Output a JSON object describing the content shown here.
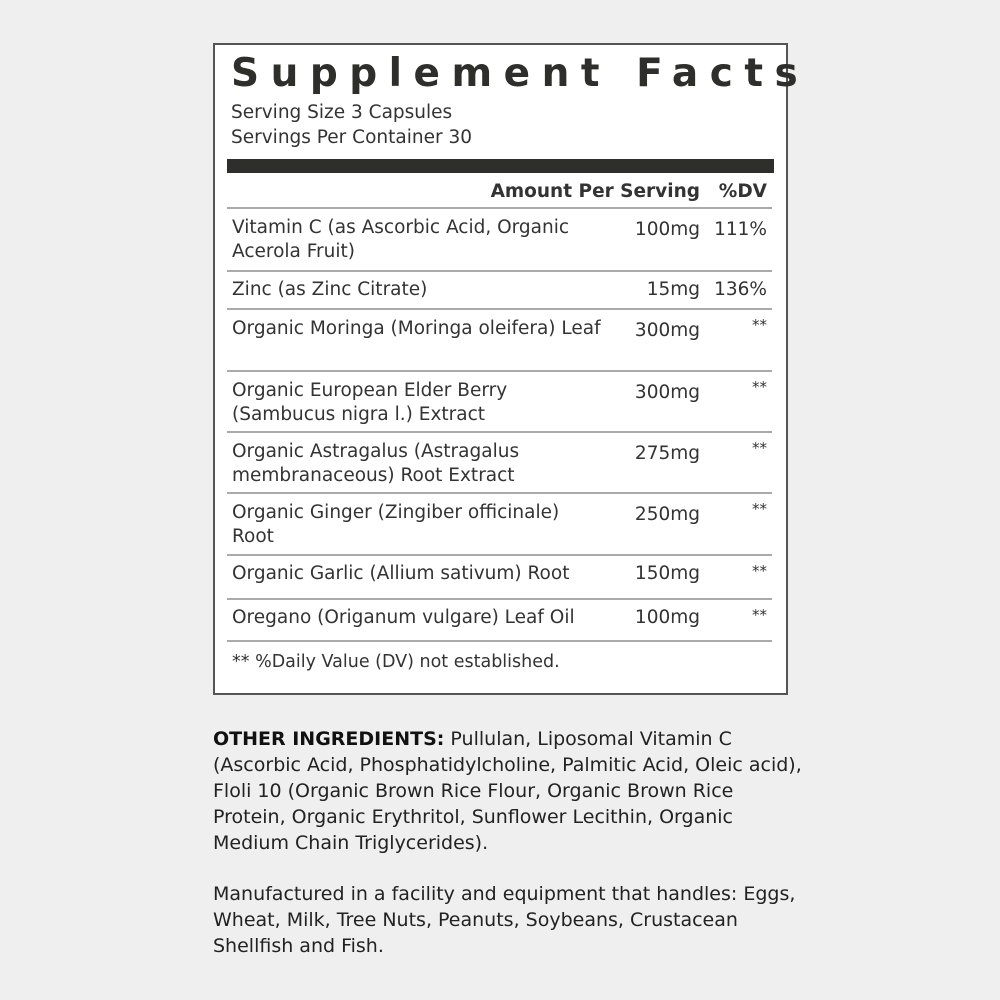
{
  "label": {
    "title": "Supplement Facts",
    "serving_size": "Serving Size 3 Capsules",
    "servings_per_container": "Servings Per Container 30",
    "header_amount": "Amount Per Serving",
    "header_dv": "%DV",
    "rows": [
      {
        "name": "Vitamin C (as Ascorbic Acid, Organic Acerola Fruit)",
        "amount": "100mg",
        "dv": "111%"
      },
      {
        "name": "Zinc (as Zinc Citrate)",
        "amount": "15mg",
        "dv": "136%"
      },
      {
        "name": "Organic Moringa (Moringa oleifera) Leaf",
        "amount": "300mg",
        "dv": "**"
      },
      {
        "name": "Organic European Elder Berry (Sambucus nigra l.) Extract",
        "amount": "300mg",
        "dv": "**"
      },
      {
        "name": "Organic Astragalus (Astragalus membranaceous) Root Extract",
        "amount": "275mg",
        "dv": "**"
      },
      {
        "name": "Organic Ginger (Zingiber officinale) Root",
        "amount": "250mg",
        "dv": "**"
      },
      {
        "name": "Organic Garlic (Allium sativum) Root",
        "amount": "150mg",
        "dv": "**"
      },
      {
        "name": "Oregano (Origanum vulgare) Leaf Oil",
        "amount": "100mg",
        "dv": "**"
      }
    ],
    "footnote": "** %Daily Value (DV) not established."
  },
  "other_ingredients": {
    "label": "OTHER INGREDIENTS:",
    "text": " Pullulan, Liposomal Vitamin C (Ascorbic Acid, Phosphatidylcholine, Palmitic Acid, Oleic acid), Floli 10 (Organic Brown Rice Flour, Organic Brown Rice Protein, Organic Erythritol, Sunflower Lecithin, Organic Medium Chain Triglycerides)."
  },
  "allergen_statement": "Manufactured in a facility and equipment that handles: Eggs, Wheat, Milk, Tree Nuts, Peanuts, Soybeans, Crustacean Shellfish and Fish."
}
